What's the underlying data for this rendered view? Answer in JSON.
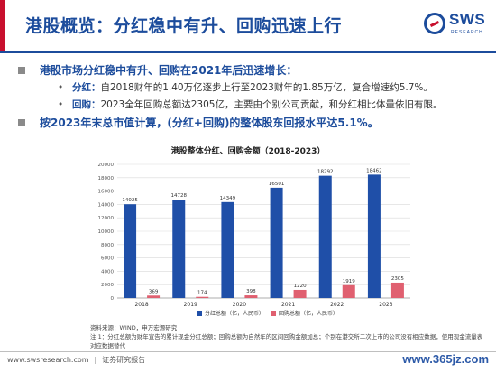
{
  "title": "港股概览：分红稳中有升、回购迅速上行",
  "logo": {
    "name": "SWS",
    "subtitle": "RESEARCH"
  },
  "bullets": {
    "main1": "港股市场分红稳中有升、回购在2021年后迅速增长：",
    "sub1_key": "分红：",
    "sub1_text": "自2018财年的1.40万亿逐步上行至2023财年的1.85万亿，复合增速约5.7%。",
    "sub2_key": "回购：",
    "sub2_text": "2023全年回购总额达2305亿，主要由个别公司贡献，和分红相比体量依旧有限。",
    "main2": "按2023年末总市值计算，(分红+回购)的整体股东回报水平达5.1%。"
  },
  "chart_data": {
    "type": "bar",
    "title": "港股整体分红、回购金额（2018-2023）",
    "categories": [
      "2018",
      "2019",
      "2020",
      "2021",
      "2022",
      "2023"
    ],
    "series": [
      {
        "name": "分红总额（亿，人民币）",
        "values": [
          14025,
          14728,
          14349,
          16501,
          18292,
          18462
        ],
        "color": "#1f4fa8"
      },
      {
        "name": "回购总额（亿，人民币）",
        "values": [
          369,
          174,
          398,
          1220,
          1919,
          2305
        ],
        "color": "#e06070"
      }
    ],
    "ylim": [
      0,
      20000
    ],
    "yticks": [
      0,
      2000,
      4000,
      6000,
      8000,
      10000,
      12000,
      14000,
      16000,
      18000,
      20000
    ],
    "grid": true,
    "legend": "bottom"
  },
  "source_note": "资料来源：WIND，申万宏源研究\n注 1：分红总额为财年宣告的累计现金分红总额；回购总额为自然年的区间回购金额加总；个别在港交所二次上市的公司没有相应数据，使用现金流量表对应数据替代",
  "footer": {
    "url": "www.swsresearch.com",
    "label": "证券研究报告"
  },
  "watermark": "www.365jz.com"
}
